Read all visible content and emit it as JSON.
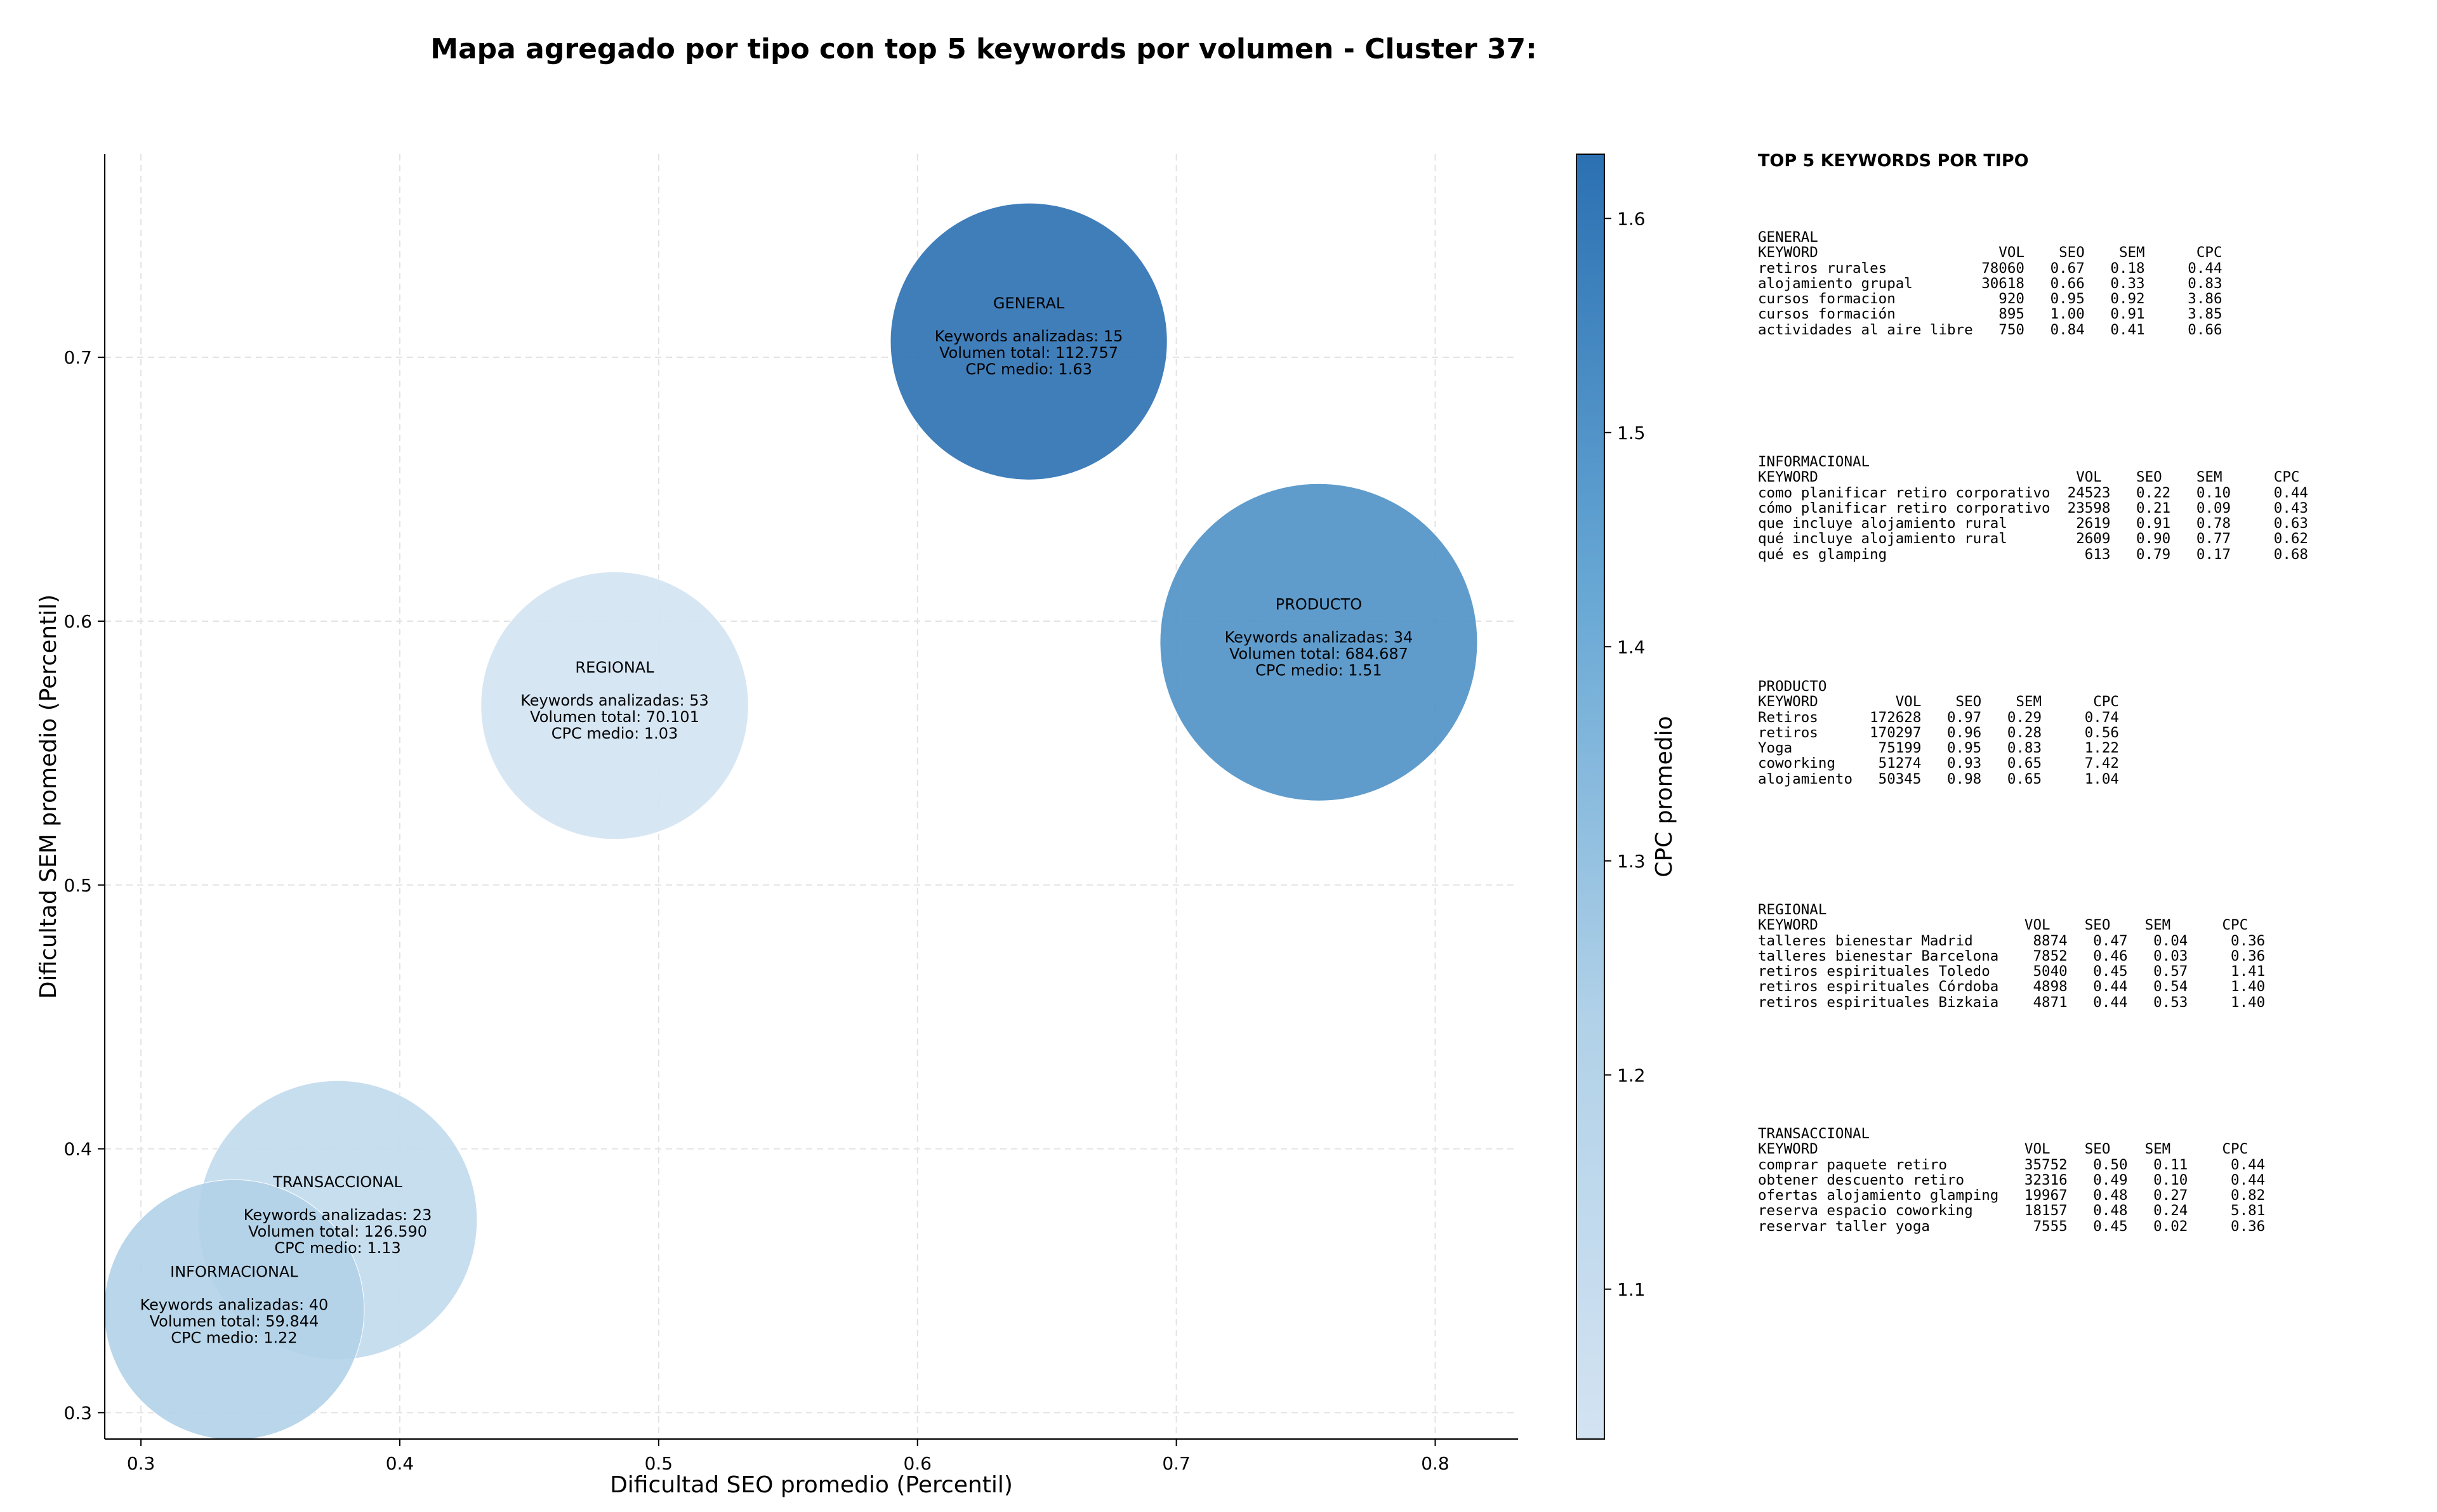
{
  "chart_data": {
    "type": "scatter",
    "title": "Mapa agregado por tipo con top 5 keywords por volumen - Cluster 37:",
    "xlabel": "Dificultad SEO promedio (Percentil)",
    "ylabel": "Dificultad SEM promedio (Percentil)",
    "xlim": [
      0.286,
      0.832
    ],
    "ylim": [
      0.29,
      0.777
    ],
    "xticks": [
      "0.3",
      "0.4",
      "0.5",
      "0.6",
      "0.7",
      "0.8"
    ],
    "yticks": [
      "0.3",
      "0.4",
      "0.5",
      "0.6",
      "0.7"
    ],
    "grid": true,
    "size_encoding": "Volumen total",
    "color_encoding": "CPC promedio",
    "colorbar": {
      "label": "CPC promedio",
      "range": [
        1.03,
        1.63
      ],
      "ticks": [
        "1.1",
        "1.2",
        "1.3",
        "1.4",
        "1.5",
        "1.6"
      ]
    },
    "points": [
      {
        "name": "GENERAL",
        "x": 0.643,
        "y": 0.706,
        "keywords": "Keywords analizadas: 15",
        "volume": "Volumen total: 112.757",
        "cpc_text": "CPC medio: 1.63",
        "cpc": 1.63,
        "volume_value": 112757
      },
      {
        "name": "PRODUCTO",
        "x": 0.755,
        "y": 0.592,
        "keywords": "Keywords analizadas: 34",
        "volume": "Volumen total: 684.687",
        "cpc_text": "CPC medio: 1.51",
        "cpc": 1.51,
        "volume_value": 684687
      },
      {
        "name": "REGIONAL",
        "x": 0.483,
        "y": 0.568,
        "keywords": "Keywords analizadas: 53",
        "volume": "Volumen total: 70.101",
        "cpc_text": "CPC medio: 1.03",
        "cpc": 1.03,
        "volume_value": 70101
      },
      {
        "name": "TRANSACCIONAL",
        "x": 0.376,
        "y": 0.373,
        "keywords": "Keywords analizadas: 23",
        "volume": "Volumen total: 126.590",
        "cpc_text": "CPC medio: 1.13",
        "cpc": 1.13,
        "volume_value": 126590
      },
      {
        "name": "INFORMACIONAL",
        "x": 0.336,
        "y": 0.339,
        "keywords": "Keywords analizadas: 40",
        "volume": "Volumen total: 59.844",
        "cpc_text": "CPC medio: 1.22",
        "cpc": 1.22,
        "volume_value": 59844
      }
    ]
  },
  "side_panel": {
    "title": "TOP 5 KEYWORDS POR TIPO",
    "blocks": [
      {
        "lines": [
          "GENERAL",
          "KEYWORD                     VOL    SEO    SEM      CPC",
          "retiros rurales           78060   0.67   0.18     0.44",
          "alojamiento grupal        30618   0.66   0.33     0.83",
          "cursos formacion            920   0.95   0.92     3.86",
          "cursos formación            895   1.00   0.91     3.85",
          "actividades al aire libre   750   0.84   0.41     0.66"
        ]
      },
      {
        "lines": [
          "INFORMACIONAL",
          "KEYWORD                              VOL    SEO    SEM      CPC",
          "como planificar retiro corporativo  24523   0.22   0.10     0.44",
          "cómo planificar retiro corporativo  23598   0.21   0.09     0.43",
          "que incluye alojamiento rural        2619   0.91   0.78     0.63",
          "qué incluye alojamiento rural        2609   0.90   0.77     0.62",
          "qué es glamping                       613   0.79   0.17     0.68"
        ]
      },
      {
        "lines": [
          "PRODUCTO",
          "KEYWORD         VOL    SEO    SEM      CPC",
          "Retiros      172628   0.97   0.29     0.74",
          "retiros      170297   0.96   0.28     0.56",
          "Yoga          75199   0.95   0.83     1.22",
          "coworking     51274   0.93   0.65     7.42",
          "alojamiento   50345   0.98   0.65     1.04"
        ]
      },
      {
        "lines": [
          "REGIONAL",
          "KEYWORD                        VOL    SEO    SEM      CPC",
          "talleres bienestar Madrid       8874   0.47   0.04     0.36",
          "talleres bienestar Barcelona    7852   0.46   0.03     0.36",
          "retiros espirituales Toledo     5040   0.45   0.57     1.41",
          "retiros espirituales Córdoba    4898   0.44   0.54     1.40",
          "retiros espirituales Bizkaia    4871   0.44   0.53     1.40"
        ]
      },
      {
        "lines": [
          "TRANSACCIONAL",
          "KEYWORD                        VOL    SEO    SEM      CPC",
          "comprar paquete retiro         35752   0.50   0.11     0.44",
          "obtener descuento retiro       32316   0.49   0.10     0.44",
          "ofertas alojamiento glamping   19967   0.48   0.27     0.82",
          "reserva espacio coworking      18157   0.48   0.24     5.81",
          "reservar taller yoga            7555   0.45   0.02     0.36"
        ]
      }
    ]
  }
}
